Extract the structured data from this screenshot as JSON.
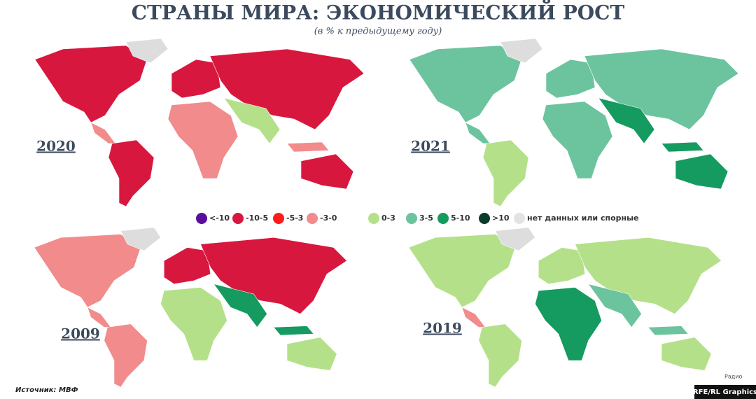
{
  "title": "СТРАНЫ МИРА: ЭКОНОМИЧЕСКИЙ РОСТ",
  "subtitle": "(в % к предыдущему году)",
  "maps": [
    {
      "year": "2020"
    },
    {
      "year": "2021"
    },
    {
      "year": "2009"
    },
    {
      "year": "2019"
    }
  ],
  "legend": [
    {
      "label": "<-10",
      "color": "#5a0e9c"
    },
    {
      "label": "-10-5",
      "color": "#d8173f"
    },
    {
      "label": "-5-3",
      "color": "#ff1a1a"
    },
    {
      "label": "-3-0",
      "color": "#f28b8b"
    },
    {
      "label": "0-3",
      "color": "#b5e08a"
    },
    {
      "label": "3-5",
      "color": "#6cc49f"
    },
    {
      "label": "5-10",
      "color": "#159a5f"
    },
    {
      "label": ">10",
      "color": "#0b3b2a"
    },
    {
      "label": "нет данных или спорные",
      "color": "#e3e3e3"
    }
  ],
  "source": "Источник: МВФ",
  "credit": "RFE/RL Graphics",
  "logo": "Радио"
}
